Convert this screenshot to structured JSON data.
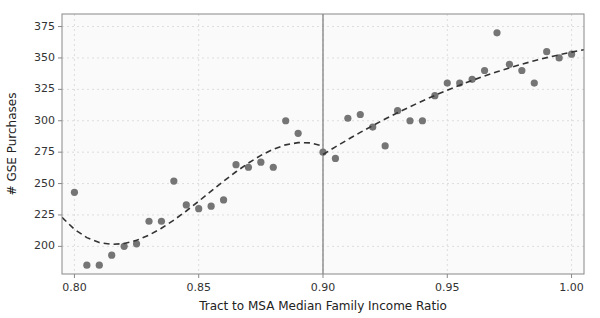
{
  "chart_data": {
    "type": "scatter",
    "x_label": "Tract to MSA Median Family Income Ratio",
    "y_label": "# GSE Purchases",
    "xlim": [
      0.795,
      1.005
    ],
    "ylim": [
      178,
      385
    ],
    "xticks": [
      {
        "value": 0.8,
        "label": "0.80"
      },
      0.85,
      {
        "value": 0.9,
        "label": "0.90"
      },
      0.95,
      {
        "value": 1,
        "label": "1.00"
      }
    ],
    "yticks": [
      200,
      225,
      250,
      275,
      300,
      325,
      350,
      375
    ],
    "grid": true,
    "vline": {
      "x": 0.9,
      "color": "#777777"
    },
    "series": [
      {
        "type": "scatter",
        "color": "#757575",
        "marker": "circle",
        "x": [
          0.8,
          0.805,
          0.81,
          0.815,
          0.82,
          0.825,
          0.83,
          0.835,
          0.84,
          0.845,
          0.85,
          0.855,
          0.86,
          0.865,
          0.87,
          0.875,
          0.88,
          0.885,
          0.89,
          0.9,
          0.905,
          0.91,
          0.915,
          0.92,
          0.925,
          0.93,
          0.935,
          0.94,
          0.945,
          0.95,
          0.955,
          0.96,
          0.965,
          0.97,
          0.975,
          0.98,
          0.985,
          0.99,
          0.995,
          1.0
        ],
        "values": [
          243,
          185,
          185,
          193,
          200,
          202,
          220,
          220,
          252,
          233,
          230,
          232,
          237,
          265,
          263,
          267,
          263,
          300,
          290,
          275,
          270,
          302,
          305,
          295,
          280,
          308,
          300,
          300,
          320,
          330,
          330,
          333,
          340,
          370,
          345,
          340,
          330,
          355,
          350,
          353
        ]
      },
      {
        "type": "line",
        "color": "#333333",
        "line_style": "dashed",
        "x": [
          0.795,
          0.8,
          0.805,
          0.81,
          0.815,
          0.82,
          0.825,
          0.83,
          0.835,
          0.84,
          0.845,
          0.85,
          0.855,
          0.86,
          0.865,
          0.87,
          0.875,
          0.88,
          0.885,
          0.89,
          0.895,
          0.9
        ],
        "values": [
          223.13,
          213.55,
          206.95,
          203.05,
          201.57,
          202.24,
          204.79,
          208.93,
          214.39,
          220.89,
          228.16,
          235.92,
          243.9,
          251.82,
          259.4,
          266.37,
          272.45,
          277.36,
          280.83,
          282.59,
          282.35,
          279.84
        ]
      },
      {
        "type": "line",
        "color": "#333333",
        "line_style": "dashed",
        "x": [
          0.9,
          0.905,
          0.91,
          0.915,
          0.92,
          0.925,
          0.93,
          0.935,
          0.94,
          0.945,
          0.95,
          0.955,
          0.96,
          0.965,
          0.97,
          0.975,
          0.98,
          0.985,
          0.99,
          0.995,
          1.0,
          1.005
        ],
        "values": [
          273.15,
          279.21,
          285.06,
          290.71,
          296.14,
          301.37,
          306.38,
          311.19,
          315.79,
          320.18,
          324.36,
          328.33,
          332.09,
          335.64,
          338.99,
          342.12,
          345.05,
          347.76,
          350.27,
          352.47,
          354.66,
          356.54
        ]
      }
    ]
  }
}
